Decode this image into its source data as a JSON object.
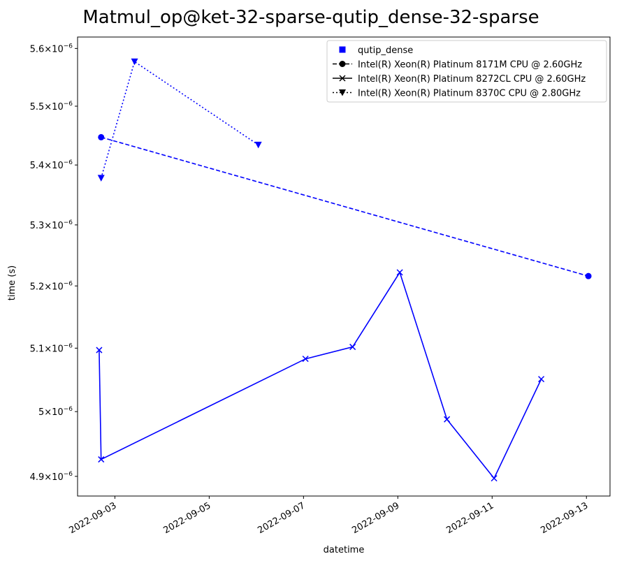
{
  "chart_data": {
    "type": "line",
    "title": "Matmul_op@ket-32-sparse-qutip_dense-32-sparse",
    "xlabel": "datetime",
    "ylabel": "time (s)",
    "y_scale": "log",
    "xlim": [
      "2022-09-02T05:00",
      "2022-09-13T12:00"
    ],
    "ylim": [
      4.87e-06,
      5.62e-06
    ],
    "x_ticks": [
      "2022-09-03",
      "2022-09-05",
      "2022-09-07",
      "2022-09-09",
      "2022-09-11",
      "2022-09-13"
    ],
    "y_ticks": [
      {
        "value": 4.9e-06,
        "mantissa": "4.9",
        "exponent": "−6"
      },
      {
        "value": 5e-06,
        "mantissa": "5",
        "exponent": "−6"
      },
      {
        "value": 5.1e-06,
        "mantissa": "5.1",
        "exponent": "−6"
      },
      {
        "value": 5.2e-06,
        "mantissa": "5.2",
        "exponent": "−6"
      },
      {
        "value": 5.3e-06,
        "mantissa": "5.3",
        "exponent": "−6"
      },
      {
        "value": 5.4e-06,
        "mantissa": "5.4",
        "exponent": "−6"
      },
      {
        "value": 5.5e-06,
        "mantissa": "5.5",
        "exponent": "−6"
      },
      {
        "value": 5.6e-06,
        "mantissa": "5.6",
        "exponent": "−6"
      }
    ],
    "times_sign": "×",
    "tick_base": "10",
    "grid": false,
    "legend_position": "top-right",
    "color": "#0000ff",
    "legend": [
      {
        "label": "qutip_dense",
        "marker": "square",
        "line": "none",
        "color": "#0000ff"
      },
      {
        "label": "Intel(R) Xeon(R) Platinum 8171M CPU @ 2.60GHz",
        "marker": "circle",
        "line": "dashed",
        "color": "#000000"
      },
      {
        "label": "Intel(R) Xeon(R) Platinum 8272CL CPU @ 2.60GHz",
        "marker": "x",
        "line": "solid",
        "color": "#000000"
      },
      {
        "label": "Intel(R) Xeon(R) Platinum 8370C CPU @ 2.80GHz",
        "marker": "triangle-down",
        "line": "dotted",
        "color": "#000000"
      }
    ],
    "series": [
      {
        "name": "Intel(R) Xeon(R) Platinum 8171M CPU @ 2.60GHz",
        "marker": "circle",
        "line": "dashed",
        "x": [
          "2022-09-02T17:00",
          "2022-09-13T01:00"
        ],
        "y": [
          5.447e-06,
          5.216e-06
        ]
      },
      {
        "name": "Intel(R) Xeon(R) Platinum 8272CL CPU @ 2.60GHz",
        "marker": "x",
        "line": "solid",
        "x": [
          "2022-09-02T16:00",
          "2022-09-02T17:00",
          "2022-09-07T01:00",
          "2022-09-08T01:00",
          "2022-09-09T01:00",
          "2022-09-10T01:00",
          "2022-09-11T01:00",
          "2022-09-12T01:00"
        ],
        "y": [
          5.097e-06,
          4.926e-06,
          5.083e-06,
          5.102e-06,
          5.222e-06,
          4.988e-06,
          4.897e-06,
          5.051e-06
        ]
      },
      {
        "name": "Intel(R) Xeon(R) Platinum 8370C CPU @ 2.80GHz",
        "marker": "triangle-down",
        "line": "dotted",
        "x": [
          "2022-09-02T17:00",
          "2022-09-03T10:00",
          "2022-09-06T01:00"
        ],
        "y": [
          5.378e-06,
          5.577e-06,
          5.434e-06
        ]
      }
    ]
  }
}
